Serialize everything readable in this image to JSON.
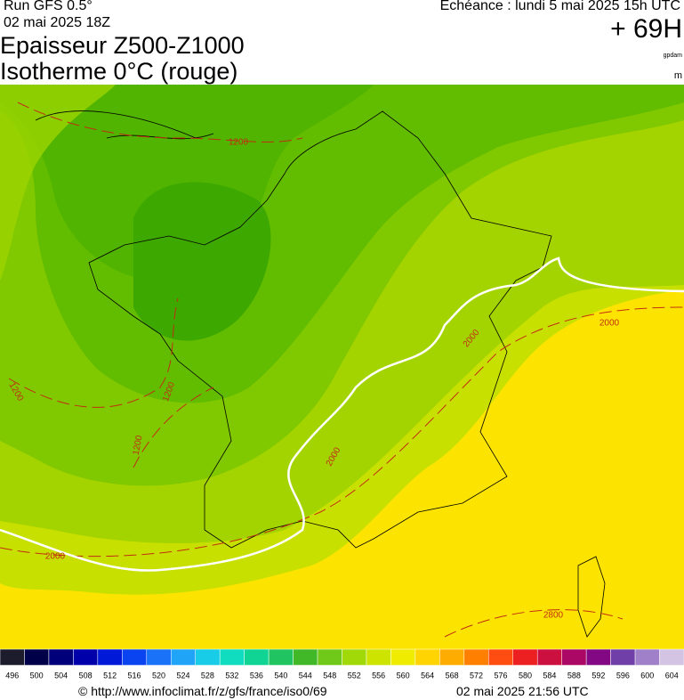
{
  "header": {
    "run": "Run GFS 0.5°",
    "run_date": "02 mai 2025 18Z",
    "title_line1": "Epaisseur Z500-Z1000",
    "title_line2": "Isotherme 0°C (rouge)",
    "forecast": "Echéance : lundi 5 mai 2025 15h UTC",
    "lead": "+ 69H",
    "unit": "gpdam",
    "unit2": "m"
  },
  "map": {
    "contour_labels": [
      "1200",
      "1200",
      "1200",
      "1200",
      "2000",
      "2000",
      "2000",
      "2000",
      "2800"
    ]
  },
  "legend": {
    "items": [
      {
        "label": "496",
        "color": "#1c1c2c"
      },
      {
        "label": "500",
        "color": "#000048"
      },
      {
        "label": "504",
        "color": "#00007a"
      },
      {
        "label": "508",
        "color": "#0000aa"
      },
      {
        "label": "512",
        "color": "#0018d8"
      },
      {
        "label": "516",
        "color": "#0a44f0"
      },
      {
        "label": "520",
        "color": "#1a72f8"
      },
      {
        "label": "524",
        "color": "#20a4f8"
      },
      {
        "label": "528",
        "color": "#18cce8"
      },
      {
        "label": "532",
        "color": "#10dcc0"
      },
      {
        "label": "536",
        "color": "#10d494"
      },
      {
        "label": "540",
        "color": "#20c460"
      },
      {
        "label": "544",
        "color": "#40b828"
      },
      {
        "label": "548",
        "color": "#70c818"
      },
      {
        "label": "552",
        "color": "#a0d808"
      },
      {
        "label": "556",
        "color": "#cce400"
      },
      {
        "label": "560",
        "color": "#f0ec00"
      },
      {
        "label": "564",
        "color": "#ffd400"
      },
      {
        "label": "568",
        "color": "#ffac00"
      },
      {
        "label": "572",
        "color": "#ff8000"
      },
      {
        "label": "576",
        "color": "#ff4c10"
      },
      {
        "label": "580",
        "color": "#ec2020"
      },
      {
        "label": "584",
        "color": "#cc1040"
      },
      {
        "label": "588",
        "color": "#aa0864"
      },
      {
        "label": "592",
        "color": "#820884"
      },
      {
        "label": "596",
        "color": "#7040a8"
      },
      {
        "label": "600",
        "color": "#a080c8"
      },
      {
        "label": "604",
        "color": "#d4c4e4"
      }
    ]
  },
  "footer": {
    "url": "© http://www.infoclimat.fr/z/gfs/france/iso0/69",
    "timestamp": "02 mai 2025 21:56 UTC"
  }
}
